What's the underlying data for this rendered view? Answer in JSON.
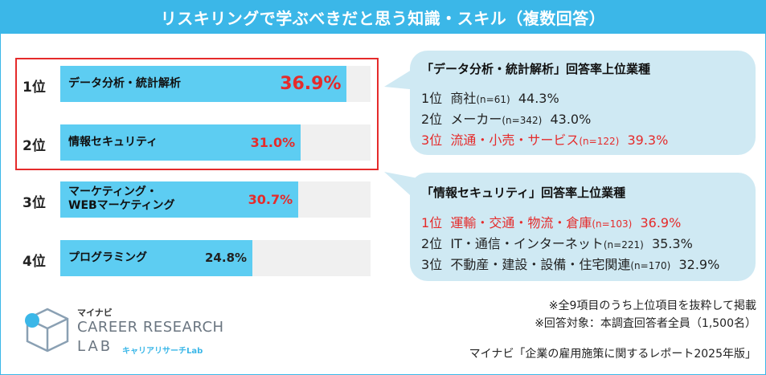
{
  "title": "リスキリングで学ぶべきだと思う知識・スキル（複数回答）",
  "chart_data": {
    "type": "bar",
    "orientation": "horizontal",
    "xlim": [
      0,
      40
    ],
    "categories": [
      {
        "rank": "1位",
        "label": "データ分析・統計解析",
        "value": 36.9,
        "value_label": "36.9%",
        "highlight": true
      },
      {
        "rank": "2位",
        "label": "情報セキュリティ",
        "value": 31.0,
        "value_label": "31.0%",
        "highlight": true
      },
      {
        "rank": "3位",
        "label_lines": [
          "マーケティング・",
          "WEBマーケティング"
        ],
        "value": 30.7,
        "value_label": "30.7%",
        "highlight": false
      },
      {
        "rank": "4位",
        "label": "プログラミング",
        "value": 24.8,
        "value_label": "24.8%",
        "highlight": false
      }
    ]
  },
  "callouts": [
    {
      "title": "「データ分析・統計解析」回答率上位業種",
      "rows": [
        {
          "rank": "1位",
          "industry": "商社",
          "n": "(n=61)",
          "pct": "44.3%",
          "red": false
        },
        {
          "rank": "2位",
          "industry": "メーカー",
          "n": "(n=342)",
          "pct": "43.0%",
          "red": false
        },
        {
          "rank": "3位",
          "industry": "流通・小売・サービス",
          "n": "(n=122)",
          "pct": "39.3%",
          "red": true
        }
      ]
    },
    {
      "title": "「情報セキュリティ」回答率上位業種",
      "rows": [
        {
          "rank": "1位",
          "industry": "運輸・交通・物流・倉庫",
          "n": "(n=103)",
          "pct": "36.9%",
          "red": true
        },
        {
          "rank": "2位",
          "industry": "IT・通信・インターネット",
          "n": "(n=221)",
          "pct": "35.3%",
          "red": false
        },
        {
          "rank": "3位",
          "industry": "不動産・建設・設備・住宅関連",
          "n": "(n=170)",
          "pct": "32.9%",
          "red": false
        }
      ]
    }
  ],
  "notes": {
    "line1": "※全9項目のうち上位項目を抜粋して掲載",
    "line2": "※回答対象：本調査回答者全員（1,500名）",
    "source": "マイナビ「企業の雇用施策に関するレポート2025年版」"
  },
  "logo": {
    "brand": "マイナビ",
    "line1": "CAREER RESEARCH",
    "line2": "LAB",
    "sub": "キャリアリサーチLab"
  },
  "colors": {
    "accent": "#3bb7e8",
    "bar": "#5dcdf2",
    "highlight": "#e52b2b",
    "callout_bg": "#cfe9f3"
  }
}
